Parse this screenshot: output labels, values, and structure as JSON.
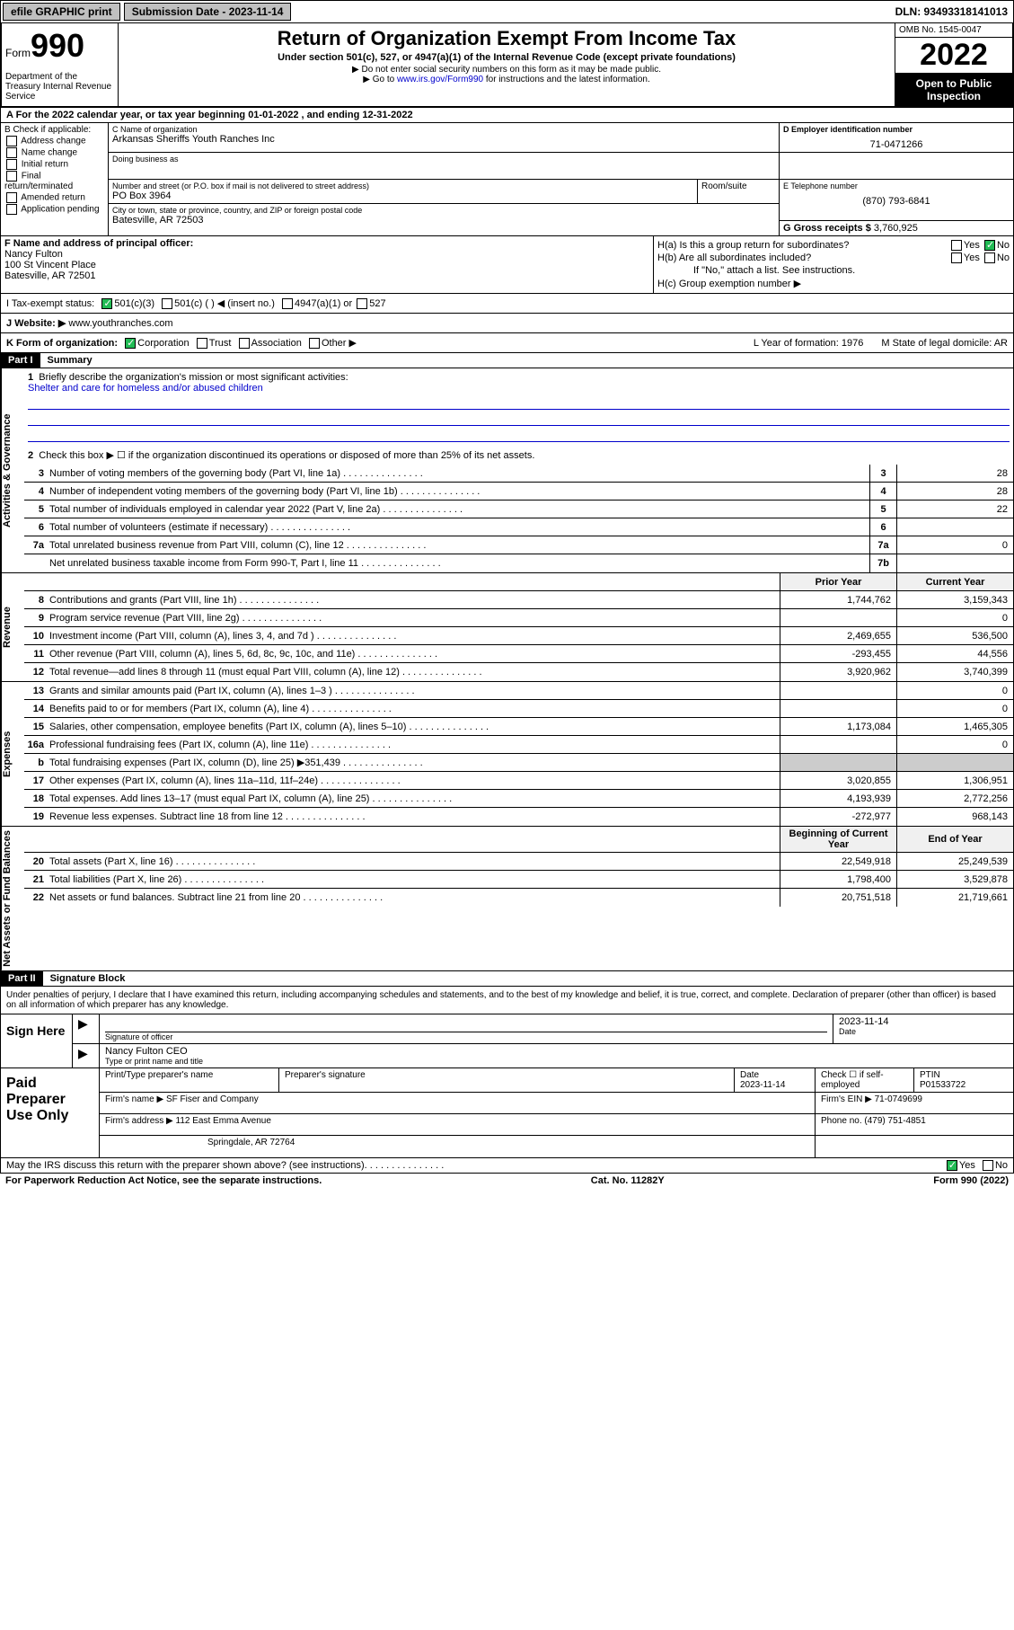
{
  "topbar": {
    "efile": "efile GRAPHIC print",
    "sub_label": "Submission Date - 2023-11-14",
    "dln": "DLN: 93493318141013"
  },
  "header": {
    "form_prefix": "Form",
    "form_num": "990",
    "dept": "Department of the Treasury Internal Revenue Service",
    "title": "Return of Organization Exempt From Income Tax",
    "sub1": "Under section 501(c), 527, or 4947(a)(1) of the Internal Revenue Code (except private foundations)",
    "sub2": "▶ Do not enter social security numbers on this form as it may be made public.",
    "sub3_pre": "▶ Go to ",
    "sub3_link": "www.irs.gov/Form990",
    "sub3_post": " for instructions and the latest information.",
    "omb": "OMB No. 1545-0047",
    "year": "2022",
    "open": "Open to Public Inspection"
  },
  "row_a": "A For the 2022 calendar year, or tax year beginning 01-01-2022    , and ending 12-31-2022",
  "section_b": {
    "hdr": "B Check if applicable:",
    "opts": [
      "Address change",
      "Name change",
      "Initial return",
      "Final return/terminated",
      "Amended return",
      "Application pending"
    ]
  },
  "section_c": {
    "name_label": "C Name of organization",
    "name": "Arkansas Sheriffs Youth Ranches Inc",
    "dba_label": "Doing business as",
    "street_label": "Number and street (or P.O. box if mail is not delivered to street address)",
    "street": "PO Box 3964",
    "suite_label": "Room/suite",
    "city_label": "City or town, state or province, country, and ZIP or foreign postal code",
    "city": "Batesville, AR  72503"
  },
  "section_d": {
    "label": "D Employer identification number",
    "val": "71-0471266"
  },
  "section_e": {
    "label": "E Telephone number",
    "val": "(870) 793-6841"
  },
  "section_g": {
    "label": "G Gross receipts $",
    "val": "3,760,925"
  },
  "section_f": {
    "label": "F Name and address of principal officer:",
    "name": "Nancy Fulton",
    "addr1": "100 St Vincent Place",
    "addr2": "Batesville, AR  72501"
  },
  "section_h": {
    "ha": "H(a)  Is this a group return for subordinates?",
    "hb": "H(b)  Are all subordinates included?",
    "hb_note": "If \"No,\" attach a list. See instructions.",
    "hc": "H(c)  Group exemption number ▶"
  },
  "row_i": {
    "label": "I   Tax-exempt status:",
    "opts": [
      "501(c)(3)",
      "501(c) (  ) ◀ (insert no.)",
      "4947(a)(1) or",
      "527"
    ]
  },
  "row_j": {
    "label": "J   Website: ▶",
    "val": "www.youthranches.com"
  },
  "row_k": {
    "label": "K Form of organization:",
    "opts": [
      "Corporation",
      "Trust",
      "Association",
      "Other ▶"
    ],
    "l": "L Year of formation: 1976",
    "m": "M State of legal domicile: AR"
  },
  "part1": {
    "hdr": "Part I",
    "title": "Summary"
  },
  "summary": {
    "gov_label": "Activities & Governance",
    "rev_label": "Revenue",
    "exp_label": "Expenses",
    "net_label": "Net Assets or Fund Balances",
    "line1": "Briefly describe the organization's mission or most significant activities:",
    "mission": "Shelter and care for homeless and/or abused children",
    "line2": "Check this box ▶ ☐  if the organization discontinued its operations or disposed of more than 25% of its net assets.",
    "lines_gov": [
      {
        "n": "3",
        "t": "Number of voting members of the governing body (Part VI, line 1a)",
        "b": "3",
        "v": "28"
      },
      {
        "n": "4",
        "t": "Number of independent voting members of the governing body (Part VI, line 1b)",
        "b": "4",
        "v": "28"
      },
      {
        "n": "5",
        "t": "Total number of individuals employed in calendar year 2022 (Part V, line 2a)",
        "b": "5",
        "v": "22"
      },
      {
        "n": "6",
        "t": "Total number of volunteers (estimate if necessary)",
        "b": "6",
        "v": ""
      },
      {
        "n": "7a",
        "t": "Total unrelated business revenue from Part VIII, column (C), line 12",
        "b": "7a",
        "v": "0"
      },
      {
        "n": "",
        "t": "Net unrelated business taxable income from Form 990-T, Part I, line 11",
        "b": "7b",
        "v": ""
      }
    ],
    "col_hdr": {
      "py": "Prior Year",
      "cy": "Current Year"
    },
    "lines_rev": [
      {
        "n": "8",
        "t": "Contributions and grants (Part VIII, line 1h)",
        "py": "1,744,762",
        "cy": "3,159,343"
      },
      {
        "n": "9",
        "t": "Program service revenue (Part VIII, line 2g)",
        "py": "",
        "cy": "0"
      },
      {
        "n": "10",
        "t": "Investment income (Part VIII, column (A), lines 3, 4, and 7d )",
        "py": "2,469,655",
        "cy": "536,500"
      },
      {
        "n": "11",
        "t": "Other revenue (Part VIII, column (A), lines 5, 6d, 8c, 9c, 10c, and 11e)",
        "py": "-293,455",
        "cy": "44,556"
      },
      {
        "n": "12",
        "t": "Total revenue—add lines 8 through 11 (must equal Part VIII, column (A), line 12)",
        "py": "3,920,962",
        "cy": "3,740,399"
      }
    ],
    "lines_exp": [
      {
        "n": "13",
        "t": "Grants and similar amounts paid (Part IX, column (A), lines 1–3 )",
        "py": "",
        "cy": "0"
      },
      {
        "n": "14",
        "t": "Benefits paid to or for members (Part IX, column (A), line 4)",
        "py": "",
        "cy": "0"
      },
      {
        "n": "15",
        "t": "Salaries, other compensation, employee benefits (Part IX, column (A), lines 5–10)",
        "py": "1,173,084",
        "cy": "1,465,305"
      },
      {
        "n": "16a",
        "t": "Professional fundraising fees (Part IX, column (A), line 11e)",
        "py": "",
        "cy": "0"
      },
      {
        "n": "b",
        "t": "Total fundraising expenses (Part IX, column (D), line 25) ▶351,439",
        "py": "",
        "cy": "",
        "shade": true
      },
      {
        "n": "17",
        "t": "Other expenses (Part IX, column (A), lines 11a–11d, 11f–24e)",
        "py": "3,020,855",
        "cy": "1,306,951"
      },
      {
        "n": "18",
        "t": "Total expenses. Add lines 13–17 (must equal Part IX, column (A), line 25)",
        "py": "4,193,939",
        "cy": "2,772,256"
      },
      {
        "n": "19",
        "t": "Revenue less expenses. Subtract line 18 from line 12",
        "py": "-272,977",
        "cy": "968,143"
      }
    ],
    "net_hdr": {
      "py": "Beginning of Current Year",
      "cy": "End of Year"
    },
    "lines_net": [
      {
        "n": "20",
        "t": "Total assets (Part X, line 16)",
        "py": "22,549,918",
        "cy": "25,249,539"
      },
      {
        "n": "21",
        "t": "Total liabilities (Part X, line 26)",
        "py": "1,798,400",
        "cy": "3,529,878"
      },
      {
        "n": "22",
        "t": "Net assets or fund balances. Subtract line 21 from line 20",
        "py": "20,751,518",
        "cy": "21,719,661"
      }
    ]
  },
  "part2": {
    "hdr": "Part II",
    "title": "Signature Block"
  },
  "sig_decl": "Under penalties of perjury, I declare that I have examined this return, including accompanying schedules and statements, and to the best of my knowledge and belief, it is true, correct, and complete. Declaration of preparer (other than officer) is based on all information of which preparer has any knowledge.",
  "sign": {
    "here": "Sign Here",
    "sig_label": "Signature of officer",
    "date": "2023-11-14",
    "date_label": "Date",
    "name": "Nancy Fulton CEO",
    "name_label": "Type or print name and title"
  },
  "paid": {
    "hdr": "Paid Preparer Use Only",
    "r1": {
      "c1": "Print/Type preparer's name",
      "c2": "Preparer's signature",
      "c3": "Date",
      "c3v": "2023-11-14",
      "c4": "Check ☐ if self-employed",
      "c5": "PTIN",
      "c5v": "P01533722"
    },
    "r2": {
      "label": "Firm's name    ▶",
      "val": "SF Fiser and Company",
      "ein_label": "Firm's EIN ▶",
      "ein": "71-0749699"
    },
    "r3": {
      "label": "Firm's address ▶",
      "val": "112 East Emma Avenue",
      "phone_label": "Phone no.",
      "phone": "(479) 751-4851"
    },
    "r4": {
      "val": "Springdale, AR  72764"
    }
  },
  "footer": {
    "discuss": "May the IRS discuss this return with the preparer shown above? (see instructions)",
    "pra": "For Paperwork Reduction Act Notice, see the separate instructions.",
    "cat": "Cat. No. 11282Y",
    "form": "Form 990 (2022)"
  }
}
